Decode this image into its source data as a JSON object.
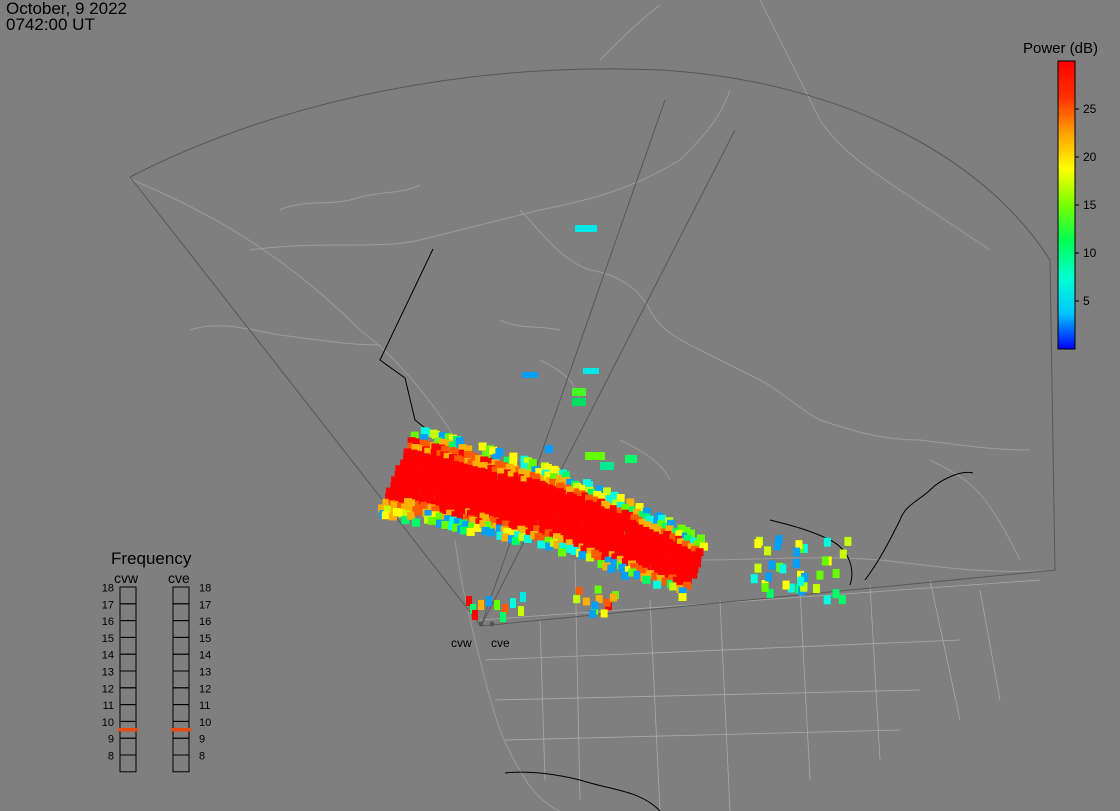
{
  "header": {
    "date": "October, 9 2022",
    "time": "0742:00 UT"
  },
  "colorbar": {
    "title": "Power (dB)",
    "ticks": [
      {
        "value": 25,
        "label": "25"
      },
      {
        "value": 20,
        "label": "20"
      },
      {
        "value": 15,
        "label": "15"
      },
      {
        "value": 10,
        "label": "10"
      },
      {
        "value": 5,
        "label": "5"
      }
    ],
    "min": 0,
    "max": 30,
    "stops": [
      "#0000ff",
      "#00c8ff",
      "#00ffd0",
      "#00ff55",
      "#77ff00",
      "#ffff00",
      "#ffa000",
      "#ff3000",
      "#ff0000"
    ]
  },
  "radars": [
    {
      "code": "cvw",
      "label": "cvw"
    },
    {
      "code": "cve",
      "label": "cve"
    }
  ],
  "frequency": {
    "title": "Frequency",
    "levels": [
      "18",
      "17",
      "16",
      "15",
      "14",
      "13",
      "12",
      "11",
      "10",
      "9",
      "8"
    ],
    "min": 8,
    "max": 19,
    "current": {
      "cvw": 10.5,
      "cve": 10.5
    },
    "marker_color": "#e84a10"
  }
}
